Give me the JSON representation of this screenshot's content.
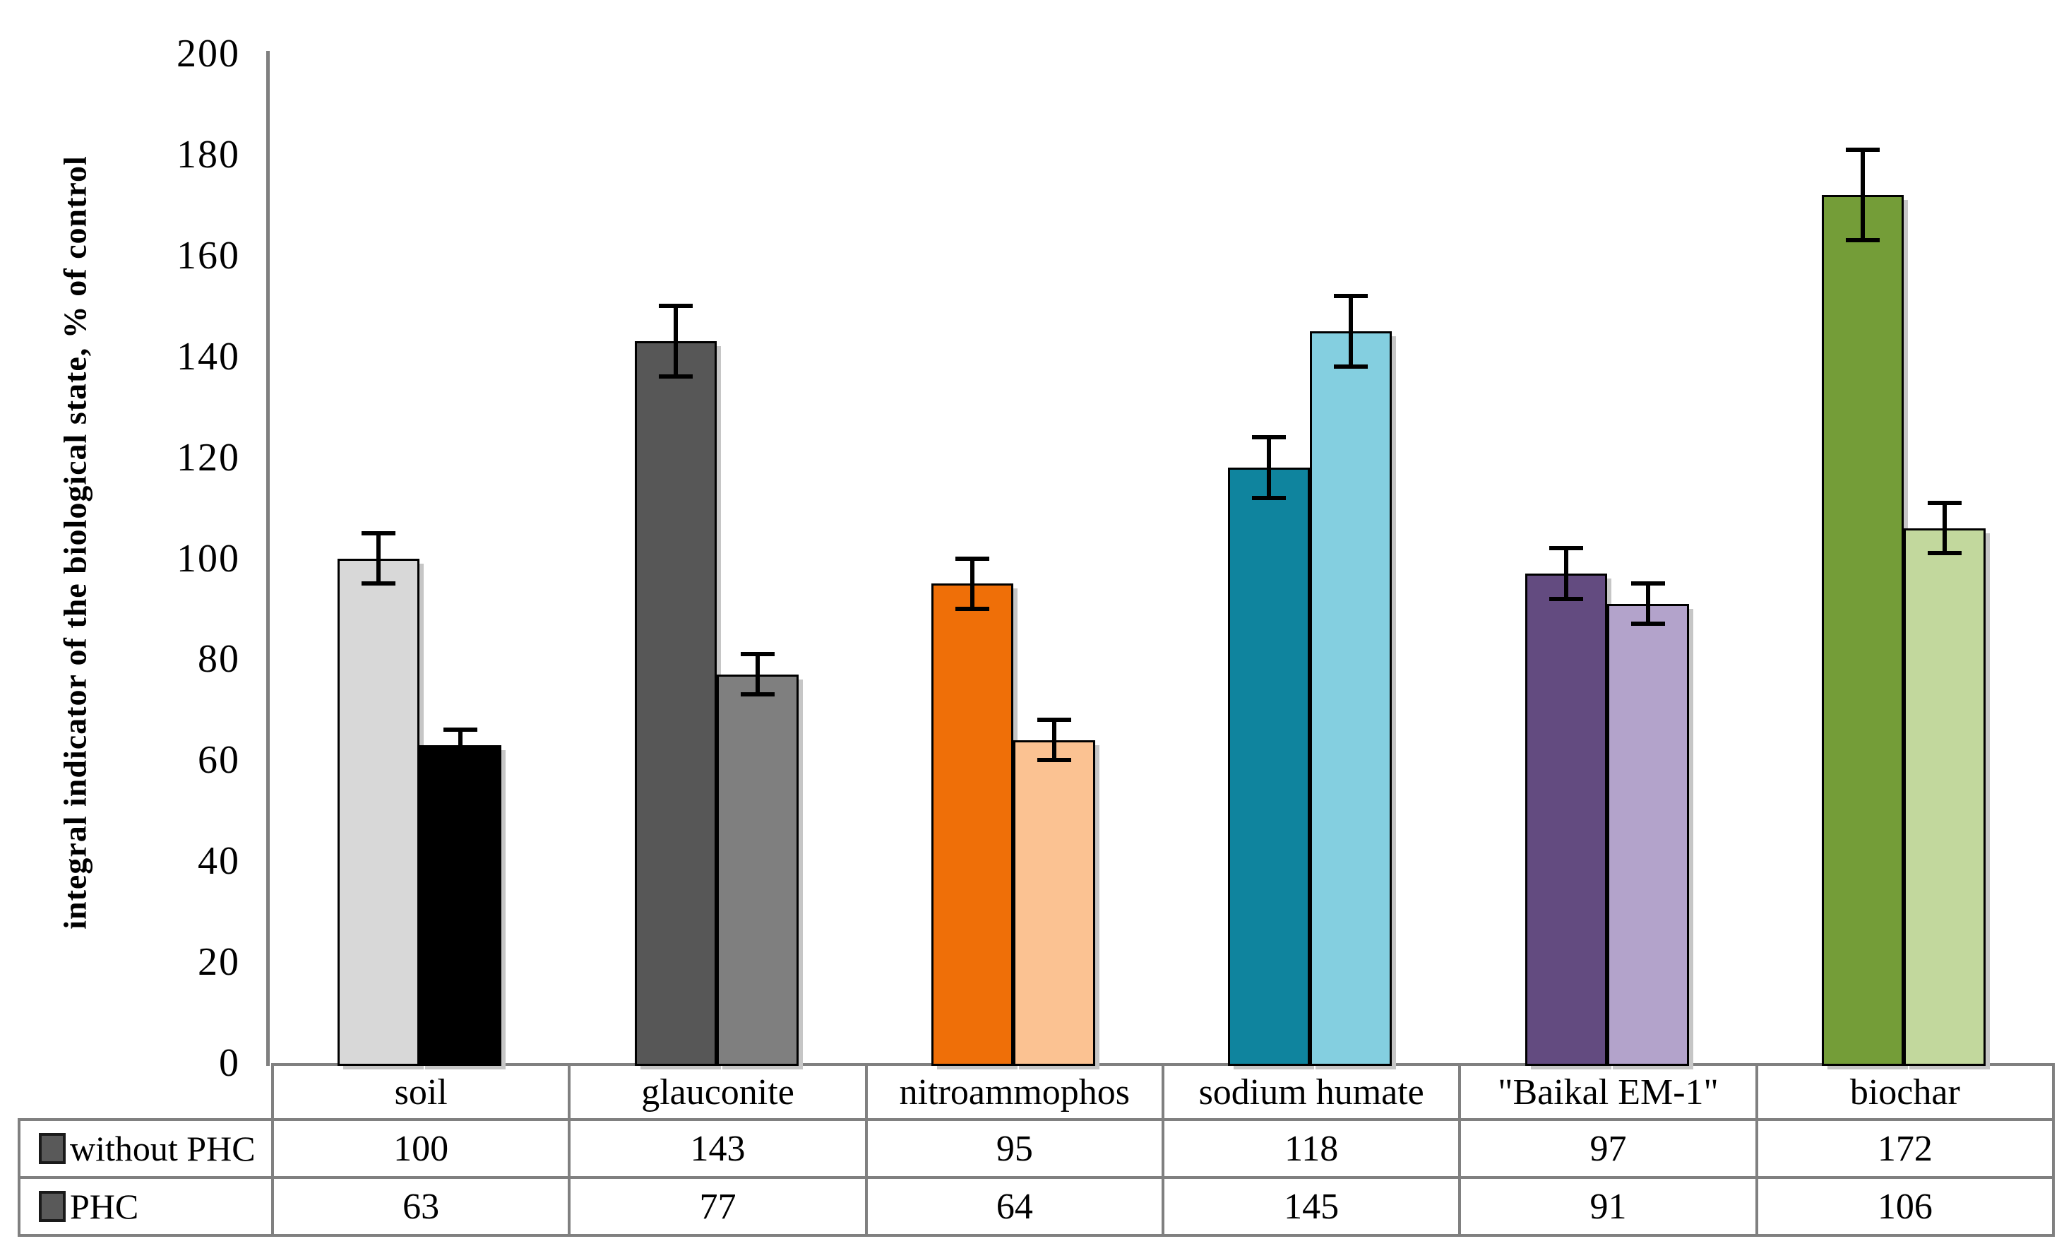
{
  "chart_data": {
    "type": "bar",
    "title": "",
    "xlabel": "",
    "ylabel": "integral indicator of the biological state, % of control",
    "ylim": [
      0,
      200
    ],
    "yticks": [
      0,
      20,
      40,
      60,
      80,
      100,
      120,
      140,
      160,
      180,
      200
    ],
    "grid": false,
    "legend_position": "table-left",
    "background_color": "#ffffff",
    "categories": [
      "soil",
      "glauconite",
      "nitroammophos",
      "sodium humate",
      "\"Baikal EM-1\"",
      "biochar"
    ],
    "series": [
      {
        "name": "without PHC",
        "values": [
          100,
          143,
          95,
          118,
          97,
          172
        ],
        "errors": [
          5,
          7,
          5,
          6,
          5,
          9
        ],
        "bar_colors": [
          "#d8d8d8",
          "#575757",
          "#ef6f08",
          "#0f849e",
          "#634b80",
          "#749d38"
        ],
        "legend_marker_color": "#595959"
      },
      {
        "name": "PHC",
        "values": [
          63,
          77,
          64,
          145,
          91,
          106
        ],
        "errors": [
          3,
          4,
          4,
          7,
          4,
          5
        ],
        "bar_colors": [
          "#000000",
          "#7f7f7f",
          "#fbc292",
          "#84cfe0",
          "#b3a3cb",
          "#c2d89d"
        ],
        "legend_marker_color": "#595959"
      }
    ],
    "colors": {
      "axis": "#808080",
      "table_border": "#808080",
      "error_bar": "#000000",
      "bar_outline": "#000000",
      "text": "#000000"
    }
  }
}
